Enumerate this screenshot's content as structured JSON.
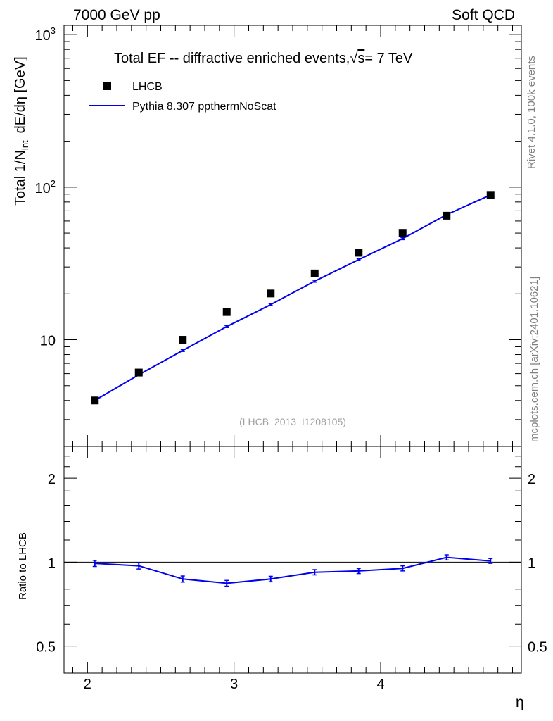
{
  "header": {
    "left": "7000 GeV pp",
    "right": "Soft QCD"
  },
  "side_text": {
    "rivet": "Rivet 4.1.0,  100k events",
    "site": "mcplots.cern.ch [arXiv:2401.10621]"
  },
  "colors": {
    "mc": "#0000ee",
    "data": "#000000",
    "axis": "#000000",
    "watermark": "#a0a0a0",
    "side_text": "#808080"
  },
  "chart_data": {
    "type": "scatter",
    "title": "Total EF -- diffractive enriched events,",
    "title_sqrt_symbol": "√",
    "title_s": "s",
    "title_energy": "= 7 TeV",
    "analysis_id": "(LHCB_2013_I1208105)",
    "xlabel": "η",
    "ylabel_main_a": "Total 1/N",
    "ylabel_main_sub": "int",
    "ylabel_main_b": "dE/dη [GeV]",
    "ylabel_ratio": "Ratio to LHCB",
    "xlim": [
      1.84,
      4.96
    ],
    "ylim": [
      2.0,
      1150
    ],
    "yscale": "log",
    "ratio_ylim": [
      0.4,
      2.6
    ],
    "ratio_yscale": "log",
    "x_ticks": [
      2,
      3,
      4
    ],
    "x_tick_labels": [
      "2",
      "3",
      "4"
    ],
    "y_ticks_main": [
      10,
      100,
      1000
    ],
    "y_tick_labels_main": [
      {
        "base": "10",
        "exp": ""
      },
      {
        "base": "10",
        "exp": "2"
      },
      {
        "base": "10",
        "exp": "3"
      }
    ],
    "ratio_ticks": [
      0.5,
      1,
      2
    ],
    "ratio_tick_labels": [
      "0.5",
      "1",
      "2"
    ],
    "legend": [
      {
        "label": "LHCB",
        "marker": "square"
      },
      {
        "label": "Pythia 8.307 ppthermNoScat",
        "marker": "line"
      }
    ],
    "x": [
      2.05,
      2.35,
      2.65,
      2.95,
      3.25,
      3.55,
      3.85,
      4.15,
      4.45,
      4.75
    ],
    "series": [
      {
        "name": "LHCB",
        "values": [
          4.0,
          6.1,
          10.0,
          15.2,
          20.1,
          27.2,
          37.2,
          50.2,
          65.0,
          89.0
        ]
      },
      {
        "name": "Pythia 8.307 ppthermNoScat",
        "values": [
          4.0,
          5.9,
          8.5,
          12.2,
          17.0,
          24.2,
          33.5,
          46.0,
          66.0,
          89.0
        ],
        "errors": [
          0.06,
          0.09,
          0.12,
          0.18,
          0.25,
          0.35,
          0.5,
          0.7,
          0.9,
          1.2
        ]
      }
    ],
    "ratio": {
      "values": [
        0.99,
        0.97,
        0.87,
        0.84,
        0.87,
        0.92,
        0.93,
        0.95,
        1.04,
        1.01
      ],
      "errors": [
        0.025,
        0.025,
        0.022,
        0.02,
        0.02,
        0.02,
        0.02,
        0.02,
        0.022,
        0.02
      ]
    }
  }
}
